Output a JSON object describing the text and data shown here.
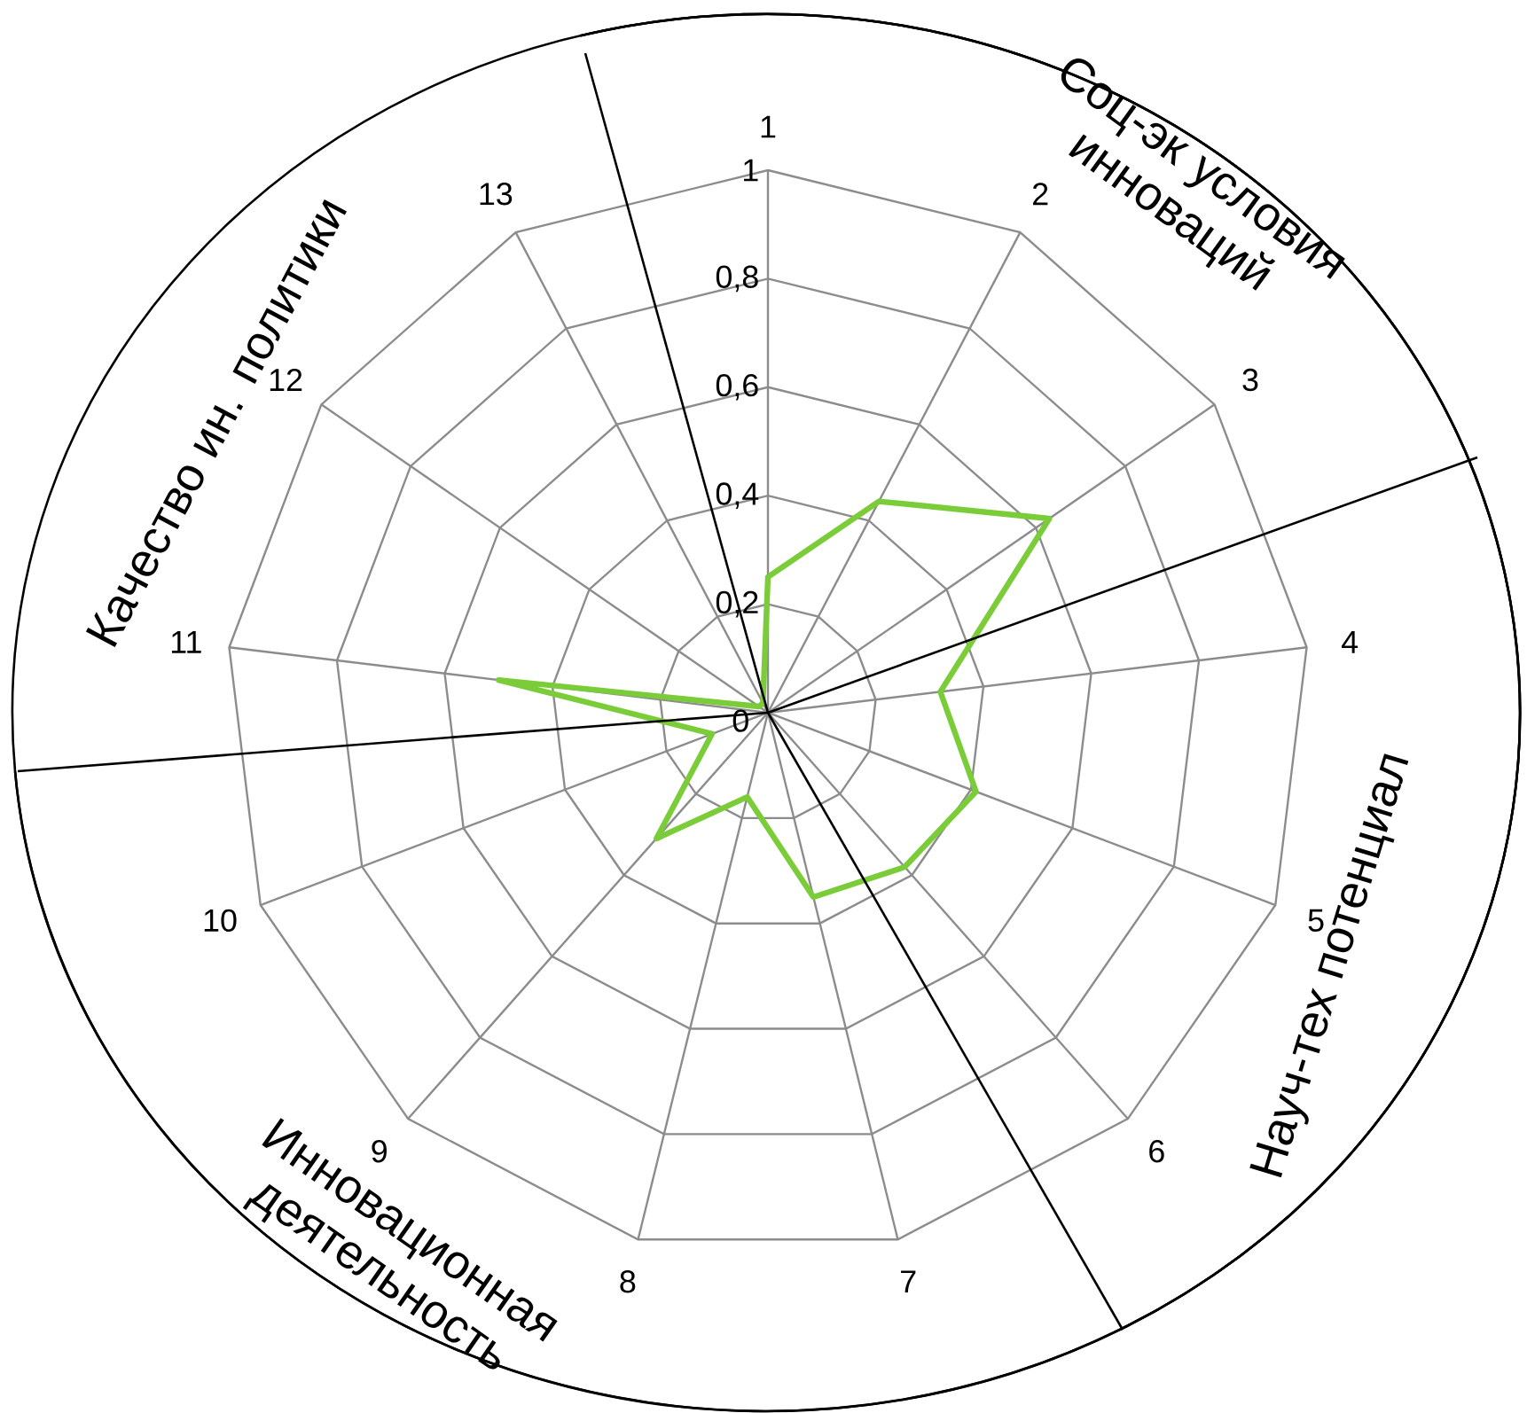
{
  "chart_data": {
    "type": "radar",
    "categories": [
      "1",
      "2",
      "3",
      "4",
      "5",
      "6",
      "7",
      "8",
      "9",
      "10",
      "11",
      "12",
      "13"
    ],
    "series": [
      {
        "color": "#7acc38",
        "values": [
          0.25,
          0.44,
          0.63,
          0.32,
          0.41,
          0.38,
          0.35,
          0.16,
          0.31,
          0.11,
          0.5,
          0.02,
          0.02
        ]
      }
    ],
    "ylim": [
      0,
      1
    ],
    "yticks": [
      {
        "value": 0,
        "label": "0"
      },
      {
        "value": 0.2,
        "label": "0,2"
      },
      {
        "value": 0.4,
        "label": "0,4"
      },
      {
        "value": 0.6,
        "label": "0,6"
      },
      {
        "value": 0.8,
        "label": "0,8"
      },
      {
        "value": 1,
        "label": "1"
      }
    ],
    "grid": true,
    "annotations": [
      "Соц-эк условия инноваций",
      "Науч-тех потенциал",
      "Инновационная деятельность",
      "Качество ин. политики"
    ]
  }
}
